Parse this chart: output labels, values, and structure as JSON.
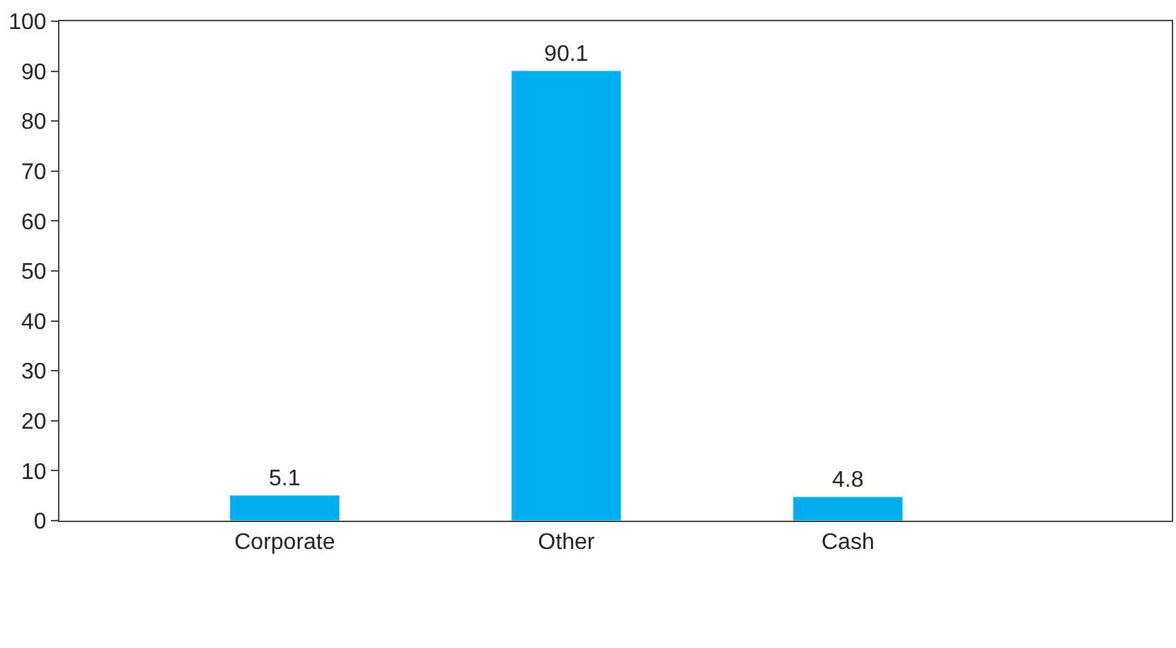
{
  "chart_data": {
    "type": "bar",
    "categories": [
      "Corporate",
      "Other",
      "Cash"
    ],
    "series": [
      {
        "color": "#00aeef",
        "values": [
          5.1,
          90.1,
          4.8
        ]
      }
    ],
    "ylim": [
      0,
      100
    ],
    "yticks": [
      0,
      10,
      20,
      30,
      40,
      50,
      60,
      70,
      80,
      90,
      100
    ],
    "data_labels": true
  }
}
